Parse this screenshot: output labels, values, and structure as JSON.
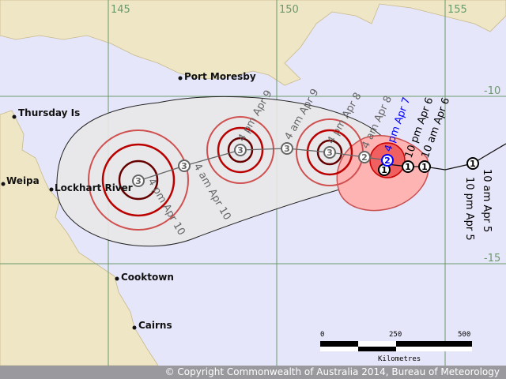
{
  "grid": {
    "lon_labels": [
      "145",
      "150",
      "155"
    ],
    "lat_labels": [
      "-10",
      "-15"
    ],
    "color": "#6a9a6a"
  },
  "places": [
    {
      "name": "Port Moresby"
    },
    {
      "name": "Thursday Is"
    },
    {
      "name": "Weipa"
    },
    {
      "name": "Lockhart River"
    },
    {
      "name": "Cooktown"
    },
    {
      "name": "Cairns"
    }
  ],
  "track": [
    {
      "label": "10 am Apr 5",
      "category": "1",
      "type": "past"
    },
    {
      "label": "10 pm Apr 5",
      "category": "",
      "type": "past"
    },
    {
      "label": "10 am Apr 6",
      "category": "1",
      "type": "past"
    },
    {
      "label": "10 pm Apr 6",
      "category": "1",
      "type": "past"
    },
    {
      "label": "",
      "category": "1",
      "type": "past"
    },
    {
      "label": "4 pm Apr 7",
      "category": "2",
      "type": "current"
    },
    {
      "label": "4 am Apr 8",
      "category": "2",
      "type": "forecast"
    },
    {
      "label": "4 pm Apr 8",
      "category": "3",
      "type": "forecast"
    },
    {
      "label": "4 am Apr 9",
      "category": "3",
      "type": "forecast"
    },
    {
      "label": "4 pm Apr 9",
      "category": "3",
      "type": "forecast"
    },
    {
      "label": "4 am Apr 10",
      "category": "3",
      "type": "forecast"
    },
    {
      "label": "4 pm Apr 10",
      "category": "3",
      "type": "forecast"
    }
  ],
  "scale": {
    "labels": [
      "0",
      "250",
      "500"
    ],
    "unit": "Kilometres"
  },
  "copyright": "© Copyright Commonwealth of Australia 2014, Bureau of Meteorology",
  "colors": {
    "land": "#efe6c6",
    "sea": "#e6e6fa",
    "uncertainty": "#e8e8e8",
    "gale_zone": "#ffb4b4",
    "destructive_zone": "#f06060",
    "current": "#0000ff"
  }
}
